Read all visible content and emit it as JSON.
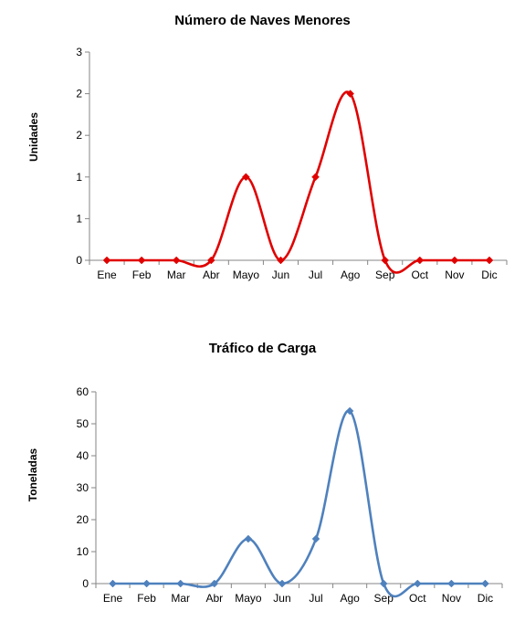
{
  "chart_data": [
    {
      "type": "line",
      "title": "Número de Naves Menores",
      "xlabel": "",
      "ylabel": "Unidades",
      "categories": [
        "Ene",
        "Feb",
        "Mar",
        "Abr",
        "Mayo",
        "Jun",
        "Jul",
        "Ago",
        "Sep",
        "Oct",
        "Nov",
        "Dic"
      ],
      "y_tick_labels": [
        "0",
        "1",
        "1",
        "2",
        "2",
        "3"
      ],
      "ylim": [
        0,
        2.5
      ],
      "series": [
        {
          "values": [
            0,
            0,
            0,
            0,
            1,
            0,
            1,
            2,
            0,
            0,
            0,
            0
          ],
          "color": "#e00000"
        }
      ],
      "smooth": true,
      "marker": "diamond",
      "grid": false,
      "legend": "none"
    },
    {
      "type": "line",
      "title": "Tráfico de Carga",
      "xlabel": "",
      "ylabel": "Toneladas",
      "categories": [
        "Ene",
        "Feb",
        "Mar",
        "Abr",
        "Mayo",
        "Jun",
        "Jul",
        "Ago",
        "Sep",
        "Oct",
        "Nov",
        "Dic"
      ],
      "y_tick_labels": [
        "0",
        "10",
        "20",
        "30",
        "40",
        "50",
        "60"
      ],
      "ylim": [
        0,
        60
      ],
      "series": [
        {
          "values": [
            0,
            0,
            0,
            0,
            14,
            0,
            14,
            54,
            0,
            0,
            0,
            0
          ],
          "color": "#4f81bd"
        }
      ],
      "smooth": true,
      "marker": "diamond",
      "grid": false,
      "legend": "none"
    }
  ]
}
